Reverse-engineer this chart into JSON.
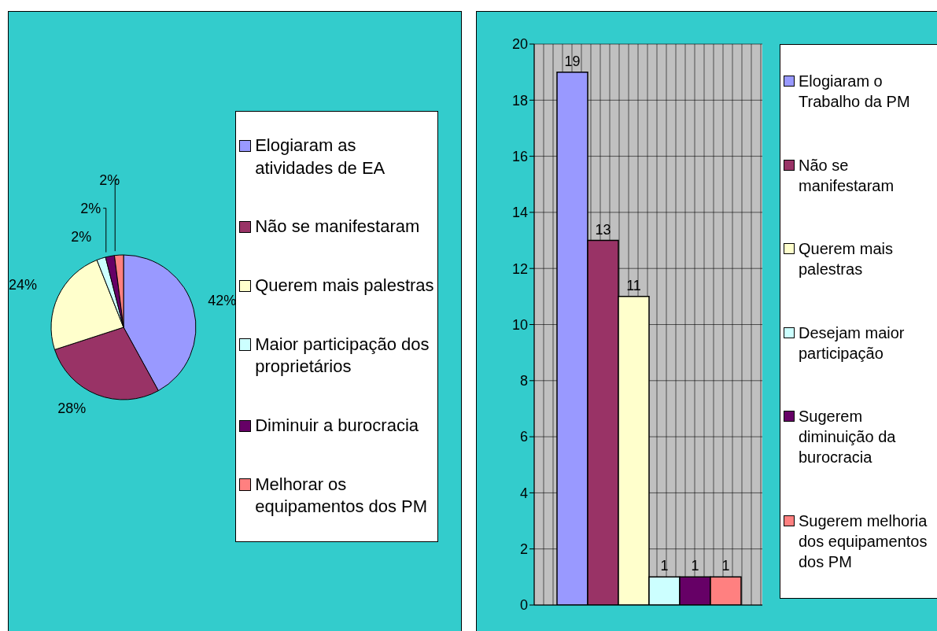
{
  "chart_data": [
    {
      "type": "pie",
      "categories": [
        "Elogiaram as atividades de EA",
        "Não se manifestaram",
        "Querem mais palestras",
        "Maior participação dos proprietários",
        "Diminuir a burocracia",
        "Melhorar os equipamentos dos PM"
      ],
      "values": [
        42,
        28,
        24,
        2,
        2,
        2
      ],
      "colors": [
        "#9999ff",
        "#993366",
        "#ffffcc",
        "#ccffff",
        "#660066",
        "#ff8080"
      ],
      "value_labels": [
        "42%",
        "28%",
        "24%",
        "2%",
        "2%",
        "2%"
      ],
      "legend": "right"
    },
    {
      "type": "bar",
      "categories": [
        null
      ],
      "series": [
        {
          "name": "Elogiaram o Trabalho da PM",
          "color": "#9999ff",
          "values": [
            19
          ]
        },
        {
          "name": "Não se manifestaram",
          "color": "#993366",
          "values": [
            13
          ]
        },
        {
          "name": "Querem mais palestras",
          "color": "#ffffcc",
          "values": [
            11
          ]
        },
        {
          "name": "Desejam maior participação",
          "color": "#ccffff",
          "values": [
            1
          ]
        },
        {
          "name": "Sugerem diminuição da burocracia",
          "color": "#660066",
          "values": [
            1
          ]
        },
        {
          "name": "Sugerem melhoria dos equipamentos dos PM",
          "color": "#ff8080",
          "values": [
            1
          ]
        }
      ],
      "data_labels": true,
      "ylim": [
        0,
        20
      ],
      "yticks": [
        0,
        2,
        4,
        6,
        8,
        10,
        12,
        14,
        16,
        18,
        20
      ],
      "grid": true,
      "legend": "right"
    }
  ]
}
